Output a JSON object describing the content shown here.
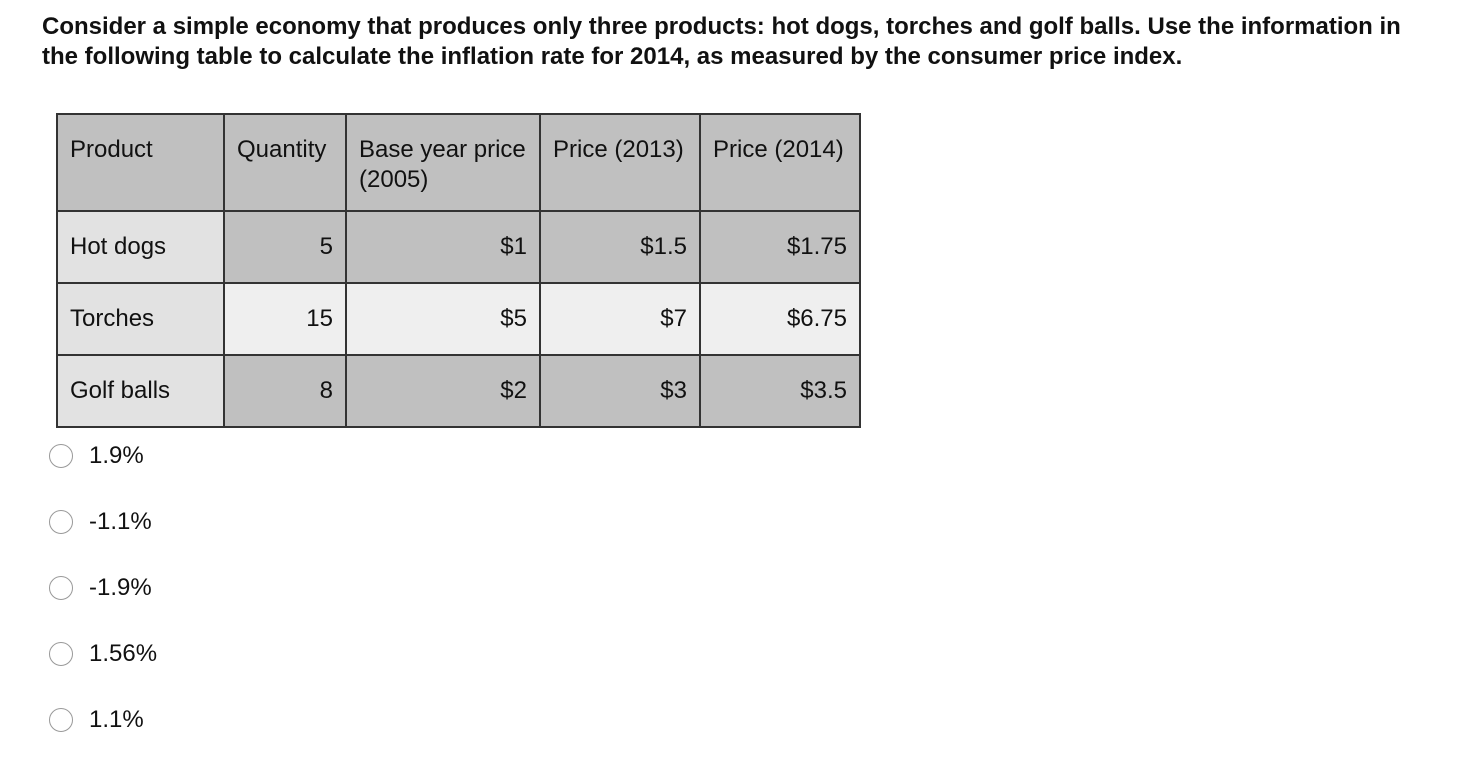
{
  "question": "Consider a simple economy that produces only three products: hot dogs, torches and golf balls. Use the information in the following table to calculate the inflation rate for 2014, as measured by the consumer price index.",
  "table": {
    "header": [
      "Product",
      "Quantity",
      "Base year price (2005)",
      "Price (2013)",
      "Price (2014)"
    ],
    "rows": [
      [
        "Hot dogs",
        "5",
        "$1",
        "$1.5",
        "$1.75"
      ],
      [
        "Torches",
        "15",
        "$5",
        "$7",
        "$6.75"
      ],
      [
        "Golf balls",
        "8",
        "$2",
        "$3",
        "$3.5"
      ]
    ]
  },
  "options": [
    "1.9%",
    "-1.1%",
    "-1.9%",
    "1.56%",
    "1.1%"
  ]
}
